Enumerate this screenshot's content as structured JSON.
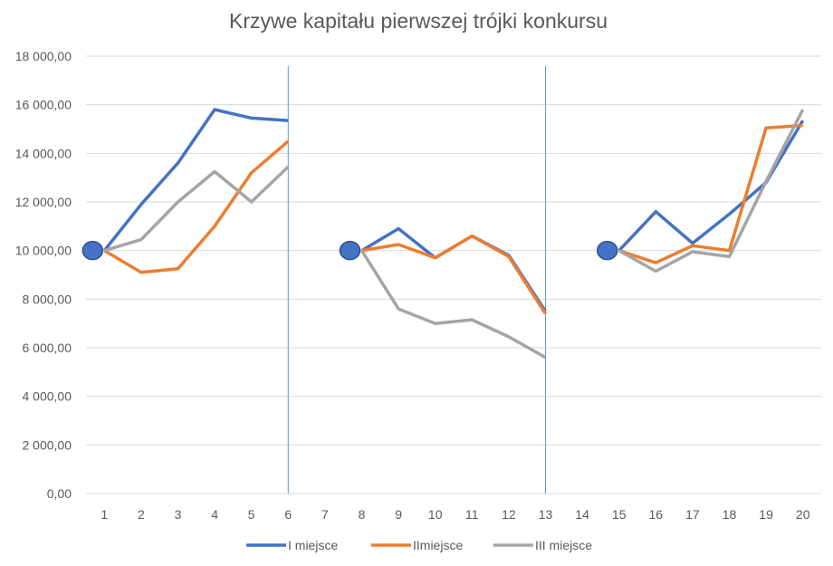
{
  "chart_data": {
    "type": "line",
    "title": "Krzywe kapitału pierwszej trójki konkursu",
    "xlabel": "",
    "ylabel": "",
    "categories": [
      "1",
      "2",
      "3",
      "4",
      "5",
      "6",
      "7",
      "8",
      "9",
      "10",
      "11",
      "12",
      "13",
      "14",
      "15",
      "16",
      "17",
      "18",
      "19",
      "20"
    ],
    "y_ticks": [
      "0,00",
      "2 000,00",
      "4 000,00",
      "6 000,00",
      "8 000,00",
      "10 000,00",
      "12 000,00",
      "14 000,00",
      "16 000,00",
      "18 000,00"
    ],
    "ylim": [
      0,
      18000
    ],
    "grid": true,
    "legend_position": "bottom",
    "segments": [
      {
        "start": "1",
        "end": "6"
      },
      {
        "start": "8",
        "end": "13"
      },
      {
        "start": "15",
        "end": "20"
      }
    ],
    "separators_at": [
      "6",
      "13"
    ],
    "start_markers": [
      {
        "x": "1",
        "y": 10000
      },
      {
        "x": "8",
        "y": 10000
      },
      {
        "x": "15",
        "y": 10000
      }
    ],
    "series": [
      {
        "name": "I miejsce",
        "color": "#4472C4",
        "values": [
          10000,
          11900,
          13600,
          15800,
          15450,
          15350,
          null,
          10000,
          10900,
          9700,
          10600,
          9800,
          7500,
          null,
          10000,
          11600,
          10300,
          11500,
          12800,
          15350
        ]
      },
      {
        "name": "IImiejsce",
        "color": "#ED7D31",
        "values": [
          10000,
          9100,
          9250,
          11000,
          13200,
          14500,
          null,
          10000,
          10250,
          9700,
          10600,
          9750,
          7400,
          null,
          10000,
          9500,
          10200,
          10000,
          15050,
          15150
        ]
      },
      {
        "name": "III miejsce",
        "color": "#A5A5A5",
        "values": [
          10000,
          10450,
          12000,
          13250,
          12000,
          13450,
          null,
          10000,
          7600,
          7000,
          7150,
          6450,
          5600,
          null,
          10000,
          9150,
          9950,
          9750,
          12850,
          15800
        ]
      }
    ],
    "colors": {
      "separator": "#5B9BD5",
      "marker_fill": "#4472C4",
      "marker_stroke": "#2F528F"
    }
  }
}
